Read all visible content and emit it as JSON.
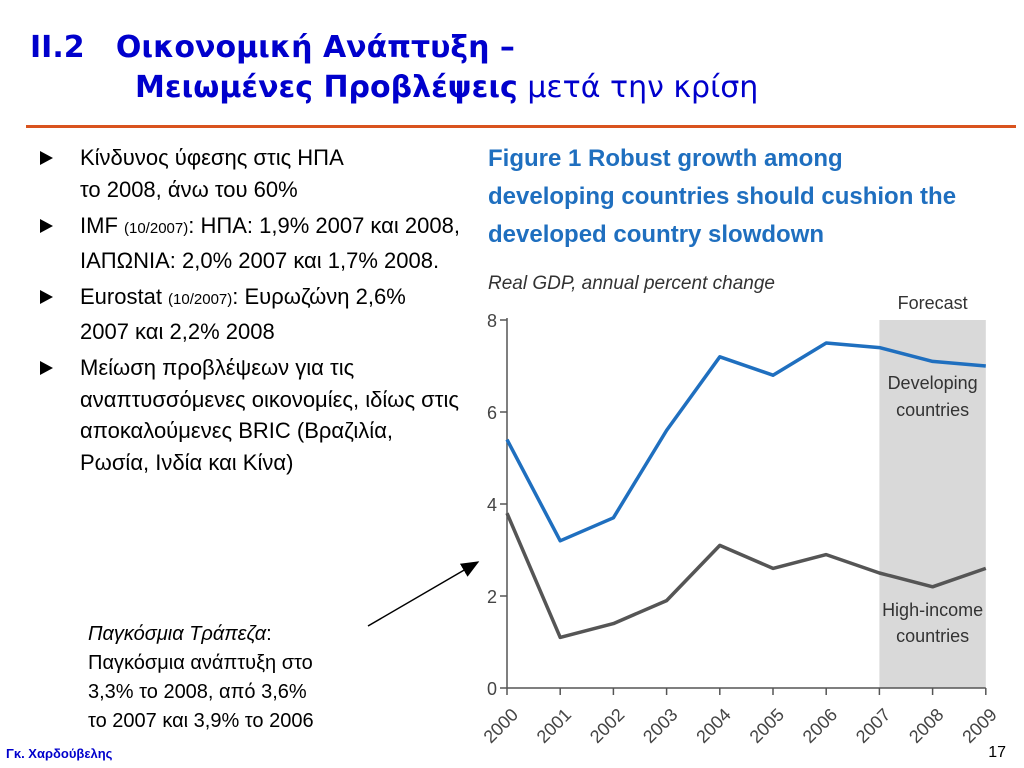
{
  "slide": {
    "title_line1": "II.2   Οικονομική Ανάπτυξη –",
    "title_line2": "Μειωμένες Προβλέψεις",
    "title_line2_light": " μετά την κρίση",
    "author": "Γκ. Χαρδούβελης",
    "page_number": "17"
  },
  "bullets": [
    {
      "line1": "Κίνδυνος ύφεσης στις ΗΠΑ",
      "line2": "το 2008, άνω του 60%"
    },
    {
      "prefix": "IMF ",
      "small": "(10/2007)",
      "rest": ": ΗΠΑ: 1,9% 2007 και 2008, ΙΑΠΩΝΙΑ: 2,0% 2007 και 1,7% 2008."
    },
    {
      "prefix": "Eurostat ",
      "small": "(10/2007)",
      "rest": ":  Ευρωζώνη 2,6% 2007 και 2,2% 2008"
    },
    {
      "text": "Μείωση προβλέψεων για τις αναπτυσσόμενες οικονομίες, ιδίως στις αποκαλούμενες BRIC (Βραζιλία, Ρωσία, Ινδία και Κίνα)"
    }
  ],
  "note": {
    "source": "Παγκόσμια Τράπεζα",
    "colon": ":",
    "line2": "Παγκόσμια ανάπτυξη στο",
    "line3": "3,3% το 2008, από 3,6%",
    "line4": "το 2007 και 3,9% το 2006"
  },
  "chart_data": {
    "type": "line",
    "title_lines": [
      "Figure 1  Robust growth among",
      "developing countries should cushion the",
      "developed country slowdown"
    ],
    "subtitle": "Real GDP, annual percent change",
    "x": [
      "2000",
      "2001",
      "2002",
      "2003",
      "2004",
      "2005",
      "2006",
      "2007",
      "2008",
      "2009"
    ],
    "yticks": [
      "0",
      "2",
      "4",
      "6",
      "8"
    ],
    "ylim": [
      0,
      8
    ],
    "forecast_label": "Forecast",
    "forecast_range": [
      "2007",
      "2009"
    ],
    "series": [
      {
        "name": "Developing countries",
        "label_lines": [
          "Developing",
          "countries"
        ],
        "color": "#1f6fbf",
        "values": [
          5.4,
          3.2,
          3.7,
          5.6,
          7.2,
          6.8,
          7.5,
          7.4,
          7.1,
          7.0
        ]
      },
      {
        "name": "High-income countries",
        "label_lines": [
          "High-income",
          "countries"
        ],
        "color": "#555555",
        "values": [
          3.8,
          1.1,
          1.4,
          1.9,
          3.1,
          2.6,
          2.9,
          2.5,
          2.2,
          2.6
        ]
      }
    ],
    "colors": {
      "forecast_band": "#d9d9d9",
      "axis": "#555555",
      "tick_label": "#444444",
      "title": "#1f6fbf"
    }
  }
}
